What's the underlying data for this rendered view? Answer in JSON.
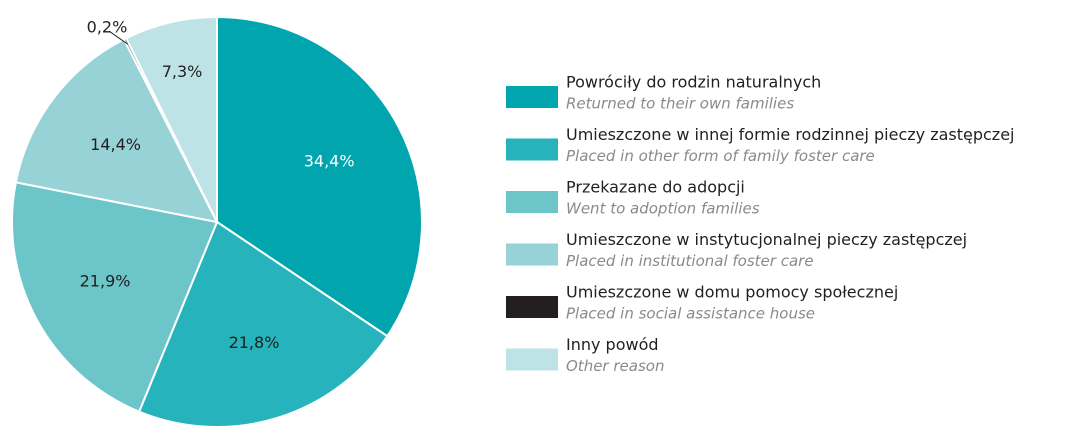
{
  "chart_data": {
    "type": "pie",
    "categories": [
      "Powróciły do rodzin naturalnych",
      "Umieszczone w innej formie rodzinnej pieczy zastępczej",
      "Przekazane do adopcji",
      "Umieszczone w instytucjonalnej pieczy zastępczej",
      "Umieszczone w domu pomocy społecznej",
      "Inny powód"
    ],
    "categories_en": [
      "Returned to their own families",
      "Placed in other form of family foster care",
      "Went to adoption families",
      "Placed in institutional foster care",
      "Placed in social assistance house",
      "Other reason"
    ],
    "values": [
      34.4,
      21.8,
      21.9,
      14.4,
      0.2,
      7.3
    ],
    "value_labels": [
      "34,4%",
      "21,8%",
      "21,9%",
      "14,4%",
      "0,2%",
      "7,3%"
    ],
    "colors": [
      "#00a5ad",
      "#26b3bb",
      "#6cc5c9",
      "#96d2d6",
      "#231f20",
      "#bde3e6"
    ],
    "legend": "right"
  }
}
